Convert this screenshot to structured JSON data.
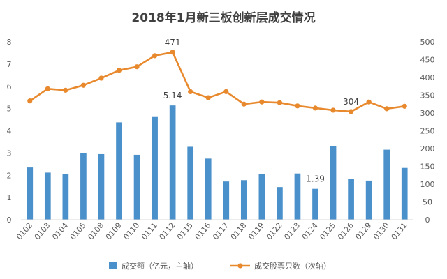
{
  "chart_data": {
    "type": "bar",
    "title": "2018年1月新三板创新层成交情况",
    "categories": [
      "0102",
      "0103",
      "0104",
      "0105",
      "0108",
      "0109",
      "0110",
      "0111",
      "0112",
      "0115",
      "0116",
      "0117",
      "0118",
      "0119",
      "0122",
      "0123",
      "0124",
      "0125",
      "0126",
      "0129",
      "0130",
      "0131"
    ],
    "ylim": [
      0,
      8
    ],
    "y2lim": [
      0,
      500
    ],
    "yticks": [
      0,
      1,
      2,
      3,
      4,
      5,
      6,
      7,
      8
    ],
    "y2ticks": [
      0,
      50,
      100,
      150,
      200,
      250,
      300,
      350,
      400,
      450,
      500
    ],
    "grid": false,
    "legend_position": "bottom",
    "series": [
      {
        "name": "成交额（亿元，主轴）",
        "type": "bar",
        "axis": "primary",
        "color": "#4A90CB",
        "values": [
          2.35,
          2.12,
          2.05,
          3.0,
          2.95,
          4.38,
          2.92,
          4.62,
          5.14,
          3.28,
          2.75,
          1.72,
          1.78,
          2.05,
          1.47,
          2.08,
          1.39,
          3.32,
          1.83,
          1.76,
          3.15,
          2.33
        ]
      },
      {
        "name": "成交股票只数（次轴）",
        "type": "line",
        "axis": "secondary",
        "color": "#E8892E",
        "values": [
          334,
          368,
          364,
          378,
          398,
          420,
          430,
          461,
          471,
          360,
          343,
          360,
          325,
          331,
          329,
          320,
          314,
          308,
          304,
          331,
          312,
          319
        ]
      }
    ],
    "data_labels": [
      {
        "series": 0,
        "index": 8,
        "text": "5.14"
      },
      {
        "series": 0,
        "index": 16,
        "text": "1.39"
      },
      {
        "series": 1,
        "index": 8,
        "text": "471"
      },
      {
        "series": 1,
        "index": 18,
        "text": "304"
      }
    ]
  }
}
